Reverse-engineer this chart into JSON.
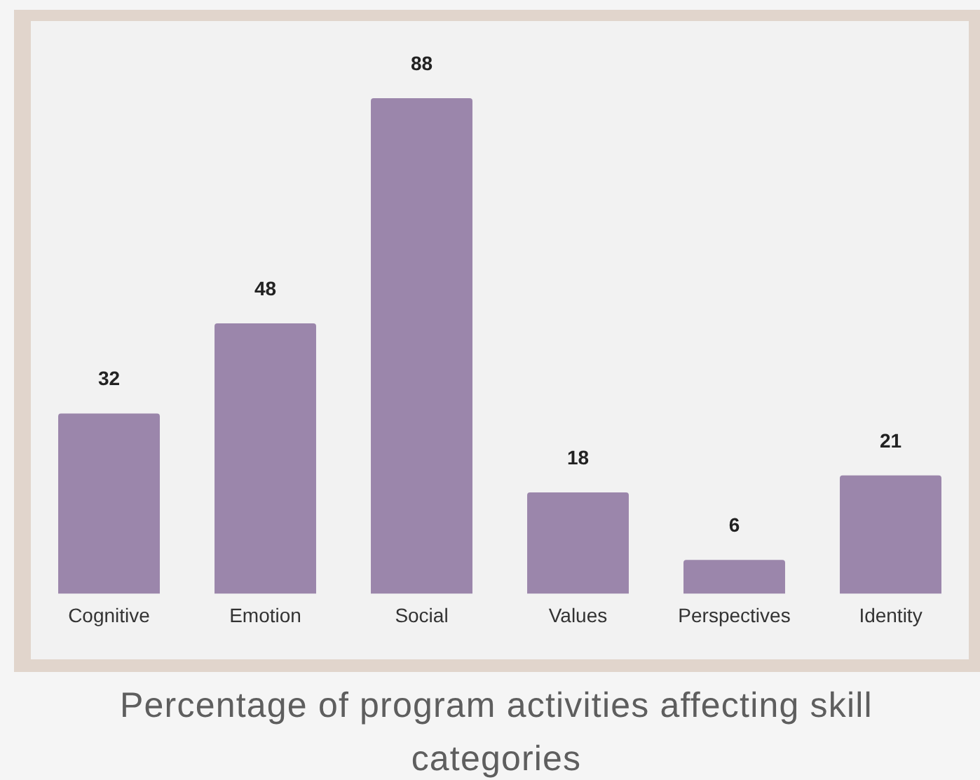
{
  "chart_data": {
    "type": "bar",
    "title": "Percentage of program activities affecting skill categories",
    "categories": [
      "Cognitive",
      "Emotion",
      "Social",
      "Values",
      "Perspectives",
      "Identity"
    ],
    "values": [
      32,
      48,
      88,
      18,
      6,
      21
    ],
    "color": "#9b86ab",
    "data_labels": true
  }
}
